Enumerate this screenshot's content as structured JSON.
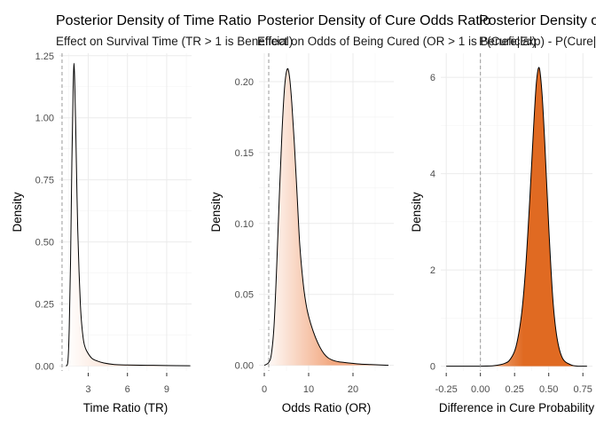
{
  "chart_data": [
    {
      "type": "area",
      "title": "Posterior Density of Time Ratio",
      "subtitle": "Effect on Survival Time (TR > 1 is Beneficial)",
      "xlabel": "Time Ratio (TR)",
      "ylabel": "Density",
      "xlim": [
        0.8,
        10.9
      ],
      "ylim": [
        -0.02,
        1.26
      ],
      "xticks": [
        3,
        6,
        9
      ],
      "xtick_labels": [
        "3",
        "6",
        "9"
      ],
      "yticks": [
        0,
        0.25,
        0.5,
        0.75,
        1.0,
        1.25
      ],
      "ytick_labels": [
        "0.00",
        "0.25",
        "0.50",
        "0.75",
        "1.00",
        "1.25"
      ],
      "reference_line_x": 1,
      "fill_gradient": [
        "#ffffff",
        "#f8d4c0"
      ],
      "x": [
        1.3,
        1.45,
        1.55,
        1.65,
        1.75,
        1.85,
        1.92,
        1.98,
        2.05,
        2.12,
        2.2,
        2.3,
        2.4,
        2.5,
        2.65,
        2.8,
        3.0,
        3.3,
        3.7,
        4.2,
        5.0,
        6.0,
        7.5,
        9.0,
        10.8
      ],
      "y": [
        0.0,
        0.02,
        0.15,
        0.42,
        0.82,
        1.12,
        1.22,
        1.12,
        0.95,
        0.75,
        0.55,
        0.38,
        0.25,
        0.17,
        0.1,
        0.07,
        0.05,
        0.03,
        0.02,
        0.012,
        0.006,
        0.004,
        0.003,
        0.002,
        0.001
      ],
      "grid": true,
      "legend": "none"
    },
    {
      "type": "area",
      "title": "Posterior Density of Cure Odds Ratio",
      "subtitle": "Effect on Odds of Being Cured (OR > 1 is Beneficial)",
      "xlabel": "Odds Ratio (OR)",
      "ylabel": "Density",
      "xlim": [
        -1.2,
        29.2
      ],
      "ylim": [
        -0.004,
        0.22
      ],
      "xticks": [
        0,
        10,
        20
      ],
      "xtick_labels": [
        "0",
        "10",
        "20"
      ],
      "yticks": [
        0,
        0.05,
        0.1,
        0.15,
        0.2
      ],
      "ytick_labels": [
        "0.00",
        "0.05",
        "0.10",
        "0.15",
        "0.20"
      ],
      "reference_line_x": 1,
      "fill_gradient": [
        "#ffffff",
        "#f2a77f"
      ],
      "x": [
        0.0,
        1.0,
        1.6,
        2.2,
        2.8,
        3.4,
        4.0,
        4.6,
        5.2,
        5.7,
        6.2,
        6.8,
        7.4,
        8.0,
        8.8,
        9.6,
        10.5,
        11.5,
        12.5,
        13.5,
        14.5,
        16.0,
        18.0,
        21.0,
        24.0,
        28.0
      ],
      "y": [
        0.0,
        0.002,
        0.008,
        0.028,
        0.07,
        0.12,
        0.165,
        0.197,
        0.209,
        0.203,
        0.185,
        0.155,
        0.12,
        0.085,
        0.057,
        0.04,
        0.029,
        0.02,
        0.013,
        0.008,
        0.005,
        0.003,
        0.002,
        0.001,
        0.0005,
        0.0
      ],
      "grid": true,
      "legend": "none"
    },
    {
      "type": "area",
      "title": "Posterior Density of Cure Probability Difference",
      "subtitle": "P(Cure|Exp) - P(Cure|Ctrl)",
      "xlabel": "Difference in Cure Probability",
      "ylabel": "Density",
      "xlim": [
        -0.29,
        0.82
      ],
      "ylim": [
        -0.1,
        6.5
      ],
      "xticks": [
        -0.25,
        0,
        0.25,
        0.5,
        0.75
      ],
      "xtick_labels": [
        "-0.25",
        "0.00",
        "0.25",
        "0.50",
        "0.75"
      ],
      "yticks": [
        0,
        2,
        4,
        6
      ],
      "ytick_labels": [
        "0",
        "2",
        "4",
        "6"
      ],
      "reference_line_x": 0,
      "fill_gradient": [
        "#ffffff",
        "#e06a22"
      ],
      "x": [
        -0.25,
        -0.1,
        0.0,
        0.1,
        0.18,
        0.22,
        0.26,
        0.3,
        0.33,
        0.36,
        0.39,
        0.41,
        0.43,
        0.45,
        0.47,
        0.5,
        0.53,
        0.56,
        0.6,
        0.66,
        0.72,
        0.78
      ],
      "y": [
        0.0,
        0.0,
        0.0,
        0.01,
        0.06,
        0.15,
        0.4,
        1.05,
        2.0,
        3.4,
        5.0,
        5.9,
        6.2,
        5.7,
        4.7,
        2.9,
        1.4,
        0.6,
        0.17,
        0.03,
        0.0,
        0.0
      ],
      "grid": true,
      "legend": "none"
    }
  ]
}
